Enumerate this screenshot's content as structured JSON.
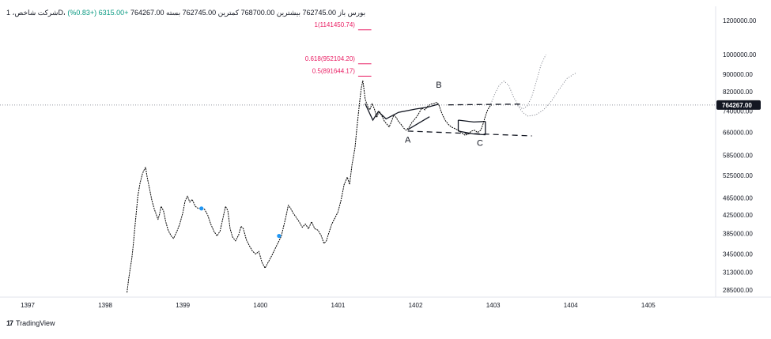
{
  "legend": {
    "text": "باز 762745.00  بیشترین 768700.00  کمترین 762745.00  بسته 764267.00",
    "symbol": "شرکت شاخص، 1D، بورس",
    "change": "+6315.00 (+0.83%)"
  },
  "branding": {
    "logo": "17",
    "name": "TradingView"
  },
  "colors": {
    "price_line": "#000000",
    "fib": "#e91e63",
    "marker": "#2196f3",
    "grid_dots": "#9598a1",
    "last_price_bg": "#131722",
    "last_price_text": "#ffffff",
    "axis_text": "#131722"
  },
  "chart_data": {
    "type": "line",
    "title": "",
    "scale": "log",
    "ylim": [
      280000,
      1220000
    ],
    "xlim": [
      1396.75,
      1405.5
    ],
    "grid": false,
    "last_price": 764267,
    "last_price_label": "764267.00",
    "y_ticks": [
      {
        "value": 1200000,
        "label": "1200000.00"
      },
      {
        "value": 1000000,
        "label": "1000000.00"
      },
      {
        "value": 900000,
        "label": "900000.00"
      },
      {
        "value": 820000,
        "label": "820000.00"
      },
      {
        "value": 740000,
        "label": "740000.00"
      },
      {
        "value": 660000,
        "label": "660000.00"
      },
      {
        "value": 585000,
        "label": "585000.00"
      },
      {
        "value": 525000,
        "label": "525000.00"
      },
      {
        "value": 465000,
        "label": "465000.00"
      },
      {
        "value": 425000,
        "label": "425000.00"
      },
      {
        "value": 385000,
        "label": "385000.00"
      },
      {
        "value": 345000,
        "label": "345000.00"
      },
      {
        "value": 313000,
        "label": "313000.00"
      },
      {
        "value": 285000,
        "label": "285000.00"
      }
    ],
    "x_ticks": [
      {
        "value": 1397,
        "label": "1397"
      },
      {
        "value": 1398,
        "label": "1398"
      },
      {
        "value": 1399,
        "label": "1399"
      },
      {
        "value": 1400,
        "label": "1400"
      },
      {
        "value": 1401,
        "label": "1401"
      },
      {
        "value": 1402,
        "label": "1402"
      },
      {
        "value": 1403,
        "label": "1403"
      },
      {
        "value": 1404,
        "label": "1404"
      },
      {
        "value": 1405,
        "label": "1405"
      }
    ],
    "series": [
      {
        "type": "price",
        "points": [
          [
            1398.28,
            281000
          ],
          [
            1398.3,
            300000
          ],
          [
            1398.32,
            318000
          ],
          [
            1398.34,
            335000
          ],
          [
            1398.36,
            360000
          ],
          [
            1398.38,
            395000
          ],
          [
            1398.4,
            430000
          ],
          [
            1398.42,
            470000
          ],
          [
            1398.45,
            505000
          ],
          [
            1398.48,
            530000
          ],
          [
            1398.5,
            540000
          ],
          [
            1398.52,
            548000
          ],
          [
            1398.54,
            520000
          ],
          [
            1398.57,
            490000
          ],
          [
            1398.6,
            460000
          ],
          [
            1398.63,
            440000
          ],
          [
            1398.66,
            425000
          ],
          [
            1398.68,
            415000
          ],
          [
            1398.7,
            427000
          ],
          [
            1398.72,
            445000
          ],
          [
            1398.75,
            435000
          ],
          [
            1398.78,
            410000
          ],
          [
            1398.81,
            392000
          ],
          [
            1398.85,
            380000
          ],
          [
            1398.88,
            375000
          ],
          [
            1398.92,
            388000
          ],
          [
            1398.96,
            405000
          ],
          [
            1399.0,
            430000
          ],
          [
            1399.03,
            458000
          ],
          [
            1399.06,
            470000
          ],
          [
            1399.09,
            455000
          ],
          [
            1399.12,
            462000
          ],
          [
            1399.16,
            445000
          ],
          [
            1399.2,
            440000
          ],
          [
            1399.24,
            440000
          ],
          [
            1399.28,
            438000
          ],
          [
            1399.32,
            425000
          ],
          [
            1399.36,
            405000
          ],
          [
            1399.4,
            390000
          ],
          [
            1399.44,
            380000
          ],
          [
            1399.48,
            390000
          ],
          [
            1399.52,
            420000
          ],
          [
            1399.55,
            445000
          ],
          [
            1399.58,
            435000
          ],
          [
            1399.61,
            395000
          ],
          [
            1399.64,
            378000
          ],
          [
            1399.68,
            370000
          ],
          [
            1399.72,
            382000
          ],
          [
            1399.75,
            400000
          ],
          [
            1399.78,
            395000
          ],
          [
            1399.82,
            372000
          ],
          [
            1399.86,
            360000
          ],
          [
            1399.9,
            350000
          ],
          [
            1399.94,
            345000
          ],
          [
            1399.98,
            350000
          ],
          [
            1400.02,
            330000
          ],
          [
            1400.06,
            320000
          ],
          [
            1400.1,
            330000
          ],
          [
            1400.15,
            343000
          ],
          [
            1400.2,
            358000
          ],
          [
            1400.24,
            370000
          ],
          [
            1400.27,
            380000
          ],
          [
            1400.3,
            400000
          ],
          [
            1400.33,
            422000
          ],
          [
            1400.36,
            448000
          ],
          [
            1400.39,
            440000
          ],
          [
            1400.42,
            430000
          ],
          [
            1400.46,
            420000
          ],
          [
            1400.5,
            410000
          ],
          [
            1400.54,
            398000
          ],
          [
            1400.58,
            405000
          ],
          [
            1400.62,
            395000
          ],
          [
            1400.66,
            410000
          ],
          [
            1400.7,
            395000
          ],
          [
            1400.74,
            392000
          ],
          [
            1400.78,
            382000
          ],
          [
            1400.82,
            365000
          ],
          [
            1400.85,
            370000
          ],
          [
            1400.88,
            385000
          ],
          [
            1400.92,
            405000
          ],
          [
            1400.96,
            418000
          ],
          [
            1401.0,
            432000
          ],
          [
            1401.04,
            460000
          ],
          [
            1401.08,
            500000
          ],
          [
            1401.12,
            520000
          ],
          [
            1401.15,
            500000
          ],
          [
            1401.18,
            555000
          ],
          [
            1401.2,
            580000
          ],
          [
            1401.22,
            610000
          ],
          [
            1401.24,
            665000
          ],
          [
            1401.26,
            720000
          ],
          [
            1401.28,
            780000
          ],
          [
            1401.3,
            835000
          ],
          [
            1401.32,
            870000
          ],
          [
            1401.33,
            845000
          ],
          [
            1401.35,
            790000
          ],
          [
            1401.38,
            760000
          ],
          [
            1401.41,
            745000
          ],
          [
            1401.44,
            770000
          ],
          [
            1401.47,
            748000
          ],
          [
            1401.5,
            715000
          ],
          [
            1401.53,
            740000
          ],
          [
            1401.56,
            725000
          ],
          [
            1401.6,
            700000
          ],
          [
            1401.63,
            690000
          ],
          [
            1401.66,
            680000
          ],
          [
            1401.69,
            700000
          ],
          [
            1401.72,
            725000
          ],
          [
            1401.75,
            715000
          ],
          [
            1401.78,
            700000
          ],
          [
            1401.81,
            690000
          ],
          [
            1401.85,
            675000
          ],
          [
            1401.88,
            668000
          ],
          [
            1401.92,
            680000
          ],
          [
            1401.95,
            695000
          ],
          [
            1401.98,
            705000
          ],
          [
            1402.02,
            720000
          ],
          [
            1402.05,
            735000
          ],
          [
            1402.08,
            752000
          ],
          [
            1402.12,
            745000
          ],
          [
            1402.16,
            760000
          ],
          [
            1402.2,
            768000
          ],
          [
            1402.24,
            770000
          ],
          [
            1402.27,
            775000
          ],
          [
            1402.3,
            765000
          ],
          [
            1402.34,
            730000
          ],
          [
            1402.38,
            705000
          ],
          [
            1402.42,
            690000
          ],
          [
            1402.46,
            680000
          ],
          [
            1402.5,
            675000
          ],
          [
            1402.55,
            668000
          ],
          [
            1402.6,
            658000
          ],
          [
            1402.64,
            650000
          ],
          [
            1402.68,
            655000
          ],
          [
            1402.72,
            665000
          ],
          [
            1402.76,
            668000
          ],
          [
            1402.8,
            660000
          ],
          [
            1402.84,
            668000
          ],
          [
            1402.87,
            690000
          ],
          [
            1402.9,
            720000
          ],
          [
            1402.93,
            745000
          ],
          [
            1402.96,
            760000
          ],
          [
            1402.98,
            764267
          ]
        ]
      },
      {
        "type": "projection",
        "style": "dotted",
        "points": [
          [
            1402.96,
            760000
          ],
          [
            1403.02,
            810000
          ],
          [
            1403.08,
            850000
          ],
          [
            1403.14,
            868000
          ],
          [
            1403.2,
            850000
          ],
          [
            1403.26,
            800000
          ],
          [
            1403.32,
            765000
          ],
          [
            1403.38,
            748000
          ],
          [
            1403.44,
            760000
          ],
          [
            1403.5,
            800000
          ],
          [
            1403.56,
            870000
          ],
          [
            1403.62,
            950000
          ],
          [
            1403.68,
            1000000
          ]
        ]
      },
      {
        "type": "projection",
        "style": "dotted",
        "points": [
          [
            1403.3,
            770000
          ],
          [
            1403.38,
            735000
          ],
          [
            1403.45,
            720000
          ],
          [
            1403.55,
            725000
          ],
          [
            1403.65,
            745000
          ],
          [
            1403.75,
            780000
          ],
          [
            1403.85,
            830000
          ],
          [
            1403.95,
            880000
          ],
          [
            1404.08,
            910000
          ]
        ]
      }
    ],
    "drawings": {
      "dashed_lines": [
        {
          "points": [
            [
              1402.42,
              765000
            ],
            [
              1403.4,
              768000
            ]
          ]
        },
        {
          "points": [
            [
              1401.9,
              665000
            ],
            [
              1403.5,
              648000
            ]
          ]
        }
      ],
      "wave_lines": [
        {
          "points": [
            [
              1401.35,
              770000
            ],
            [
              1401.45,
              705000
            ],
            [
              1401.52,
              738000
            ],
            [
              1401.62,
              710000
            ],
            [
              1401.78,
              735000
            ],
            [
              1402.0,
              748000
            ],
            [
              1402.15,
              755000
            ],
            [
              1402.3,
              768000
            ]
          ]
        },
        {
          "points": [
            [
              1401.9,
              670000
            ],
            [
              1402.18,
              718000
            ]
          ]
        },
        {
          "points": [
            [
              1402.55,
              705000
            ],
            [
              1402.75,
              698000
            ],
            [
              1402.9,
              700000
            ]
          ]
        },
        {
          "points": [
            [
              1402.55,
              665000
            ],
            [
              1402.75,
              655000
            ],
            [
              1402.9,
              652000
            ]
          ]
        },
        {
          "points": [
            [
              1402.55,
              705000
            ],
            [
              1402.55,
              665000
            ]
          ]
        },
        {
          "points": [
            [
              1402.9,
              700000
            ],
            [
              1402.9,
              652000
            ]
          ]
        }
      ],
      "wave_labels": [
        {
          "label": "A",
          "x": 1401.9,
          "y": 625000
        },
        {
          "label": "B",
          "x": 1402.3,
          "y": 838000
        },
        {
          "label": "C",
          "x": 1402.83,
          "y": 615000
        }
      ],
      "fib_levels": [
        {
          "label": "1(1141450.74)",
          "value": 1141450.74
        },
        {
          "label": "0.618(952104.20)",
          "value": 952104.2
        },
        {
          "label": "0.5(891644.17)",
          "value": 891644.17
        }
      ],
      "markers": [
        {
          "x": 1399.24,
          "y": 440000
        },
        {
          "x": 1400.24,
          "y": 380000
        }
      ]
    }
  }
}
